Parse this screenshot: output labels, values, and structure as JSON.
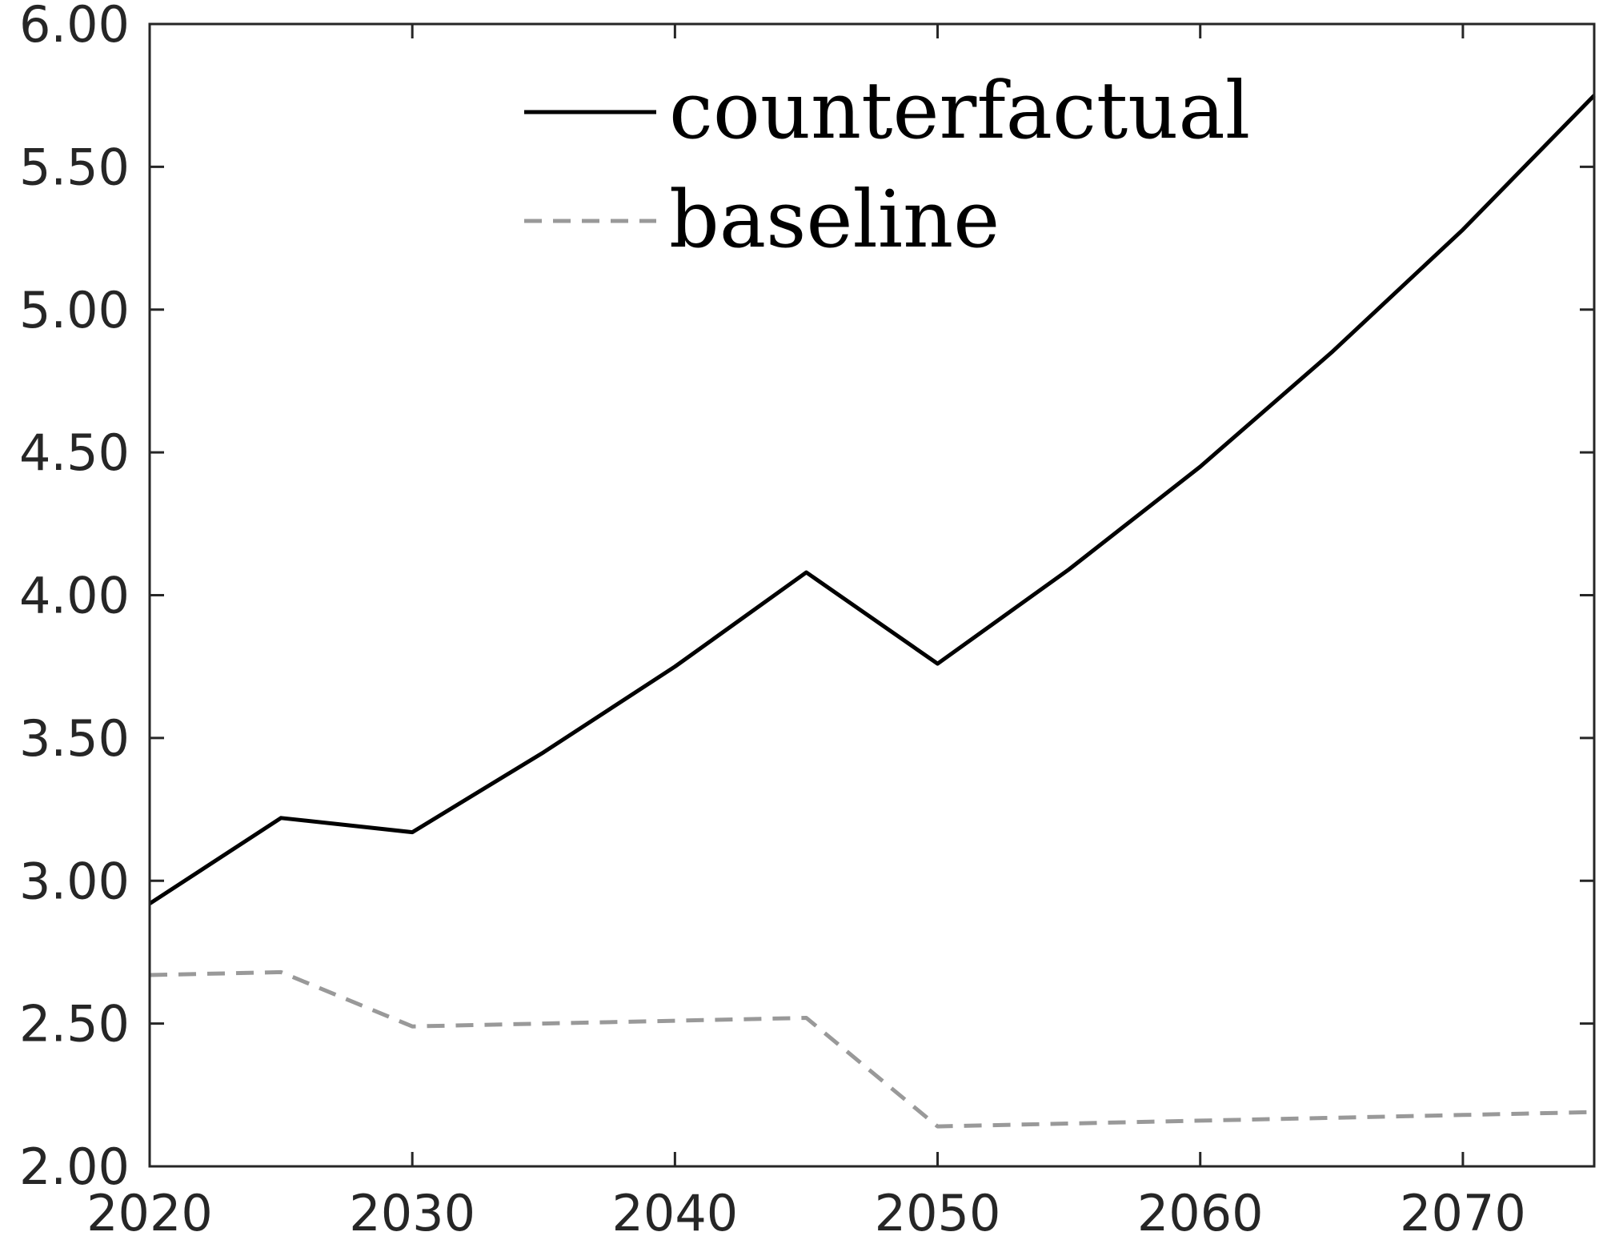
{
  "chart_data": {
    "type": "line",
    "title": "",
    "xlabel": "",
    "ylabel": "",
    "xlim": [
      2020,
      2075
    ],
    "ylim": [
      2.0,
      6.0
    ],
    "x_ticks": [
      2020,
      2030,
      2040,
      2050,
      2060,
      2070
    ],
    "y_ticks": [
      2.0,
      2.5,
      3.0,
      3.5,
      4.0,
      4.5,
      5.0,
      5.5,
      6.0
    ],
    "x_tick_labels": [
      "2020",
      "2030",
      "2040",
      "2050",
      "2060",
      "2070"
    ],
    "y_tick_labels": [
      "2.00",
      "2.50",
      "3.00",
      "3.50",
      "4.00",
      "4.50",
      "5.00",
      "5.50",
      "6.00"
    ],
    "grid": false,
    "legend_position": "top-center",
    "x": [
      2020,
      2025,
      2030,
      2035,
      2040,
      2045,
      2050,
      2055,
      2060,
      2065,
      2070,
      2075
    ],
    "series": [
      {
        "name": "counterfactual",
        "style": "solid",
        "color": "#000000",
        "values": [
          2.92,
          3.22,
          3.17,
          3.45,
          3.75,
          4.08,
          3.76,
          4.09,
          4.45,
          4.85,
          5.28,
          5.75
        ]
      },
      {
        "name": "baseline",
        "style": "dashed",
        "color": "#999999",
        "values": [
          2.67,
          2.68,
          2.49,
          2.5,
          2.51,
          2.52,
          2.14,
          2.15,
          2.16,
          2.17,
          2.18,
          2.19
        ]
      }
    ]
  }
}
